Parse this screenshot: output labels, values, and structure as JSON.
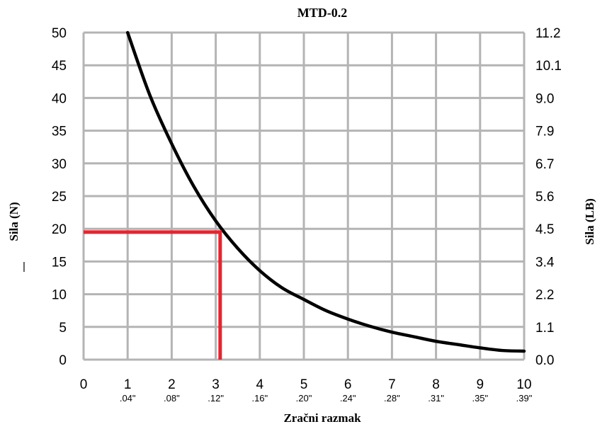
{
  "chart_data": {
    "type": "line",
    "title": "MTD-0.2",
    "xlabel": "Zračni razmak",
    "ylabel_left": "Sila (N)",
    "ylabel_right": "Sila (LB)",
    "stray_mark": "|",
    "xlim": [
      0,
      10
    ],
    "ylim": [
      0,
      50
    ],
    "grid": true,
    "x_ticks": [
      "0",
      "1",
      "2",
      "3",
      "4",
      "5",
      "6",
      "7",
      "8",
      "9",
      "10"
    ],
    "x_ticks_inch": [
      "",
      ".04\"",
      ".08\"",
      ".12\"",
      ".16\"",
      ".20\"",
      ".24\"",
      ".28\"",
      ".31\"",
      ".35\"",
      ".39\""
    ],
    "y_ticks_left": [
      "0",
      "5",
      "10",
      "15",
      "20",
      "25",
      "30",
      "35",
      "40",
      "45",
      "50"
    ],
    "y_ticks_right": [
      "0.0",
      "1.1",
      "2.2",
      "3.4",
      "4.5",
      "5.6",
      "6.7",
      "7.9",
      "9.0",
      "10.1",
      "11.2"
    ],
    "series": [
      {
        "color": "#000000",
        "x": [
          1.0,
          1.5,
          2.0,
          2.5,
          3.0,
          3.5,
          4.0,
          4.5,
          5.0,
          5.5,
          6.0,
          6.5,
          7.0,
          7.5,
          8.0,
          8.5,
          9.0,
          9.5,
          10.0
        ],
        "y": [
          50.0,
          40.5,
          33.0,
          26.5,
          21.2,
          17.0,
          13.6,
          11.0,
          9.2,
          7.5,
          6.2,
          5.1,
          4.2,
          3.5,
          2.8,
          2.3,
          1.8,
          1.4,
          1.3
        ]
      }
    ],
    "marker": {
      "color": "#e52530",
      "x": 3.1,
      "y": 19.5
    }
  }
}
